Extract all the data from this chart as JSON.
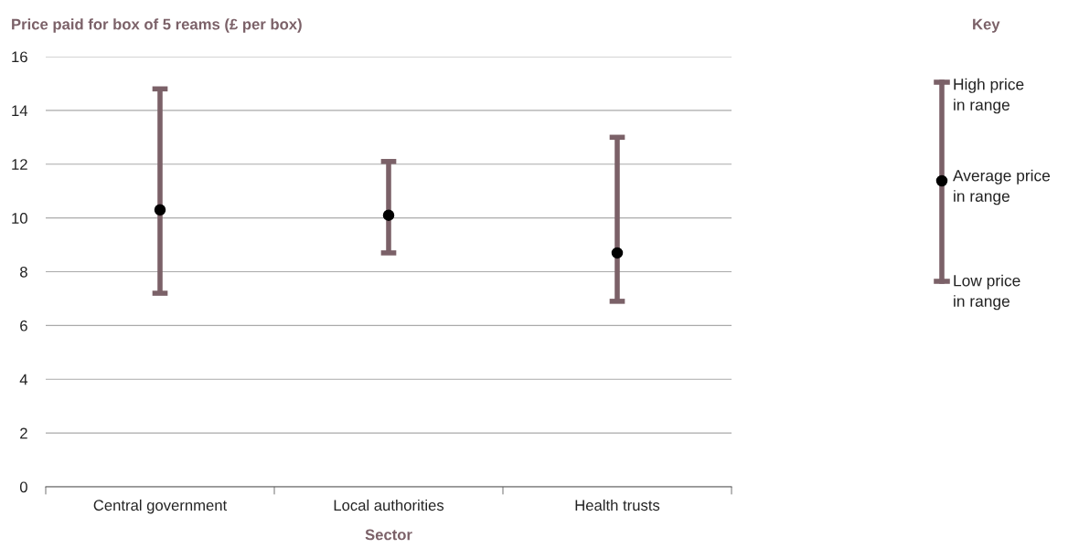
{
  "chart_data": {
    "type": "scatter",
    "ylabel": "Price paid for box of 5 reams (£ per box)",
    "xlabel": "Sector",
    "categories": [
      "Central government",
      "Local authorities",
      "Health trusts"
    ],
    "series": [
      {
        "color": "#000000",
        "values": [
          10.3,
          10.1,
          8.7
        ],
        "errors": [
          [
            7.2,
            14.8
          ],
          [
            8.7,
            12.1
          ],
          [
            6.9,
            13.0
          ]
        ]
      }
    ],
    "ylim": [
      0,
      16
    ],
    "yticks": [
      0,
      2,
      4,
      6,
      8,
      10,
      12,
      14,
      16
    ],
    "grid": "y",
    "marker": "circle",
    "annotations": [
      "Key",
      "High price\nin range",
      "Average price\nin range",
      "Low price\nin range"
    ]
  }
}
